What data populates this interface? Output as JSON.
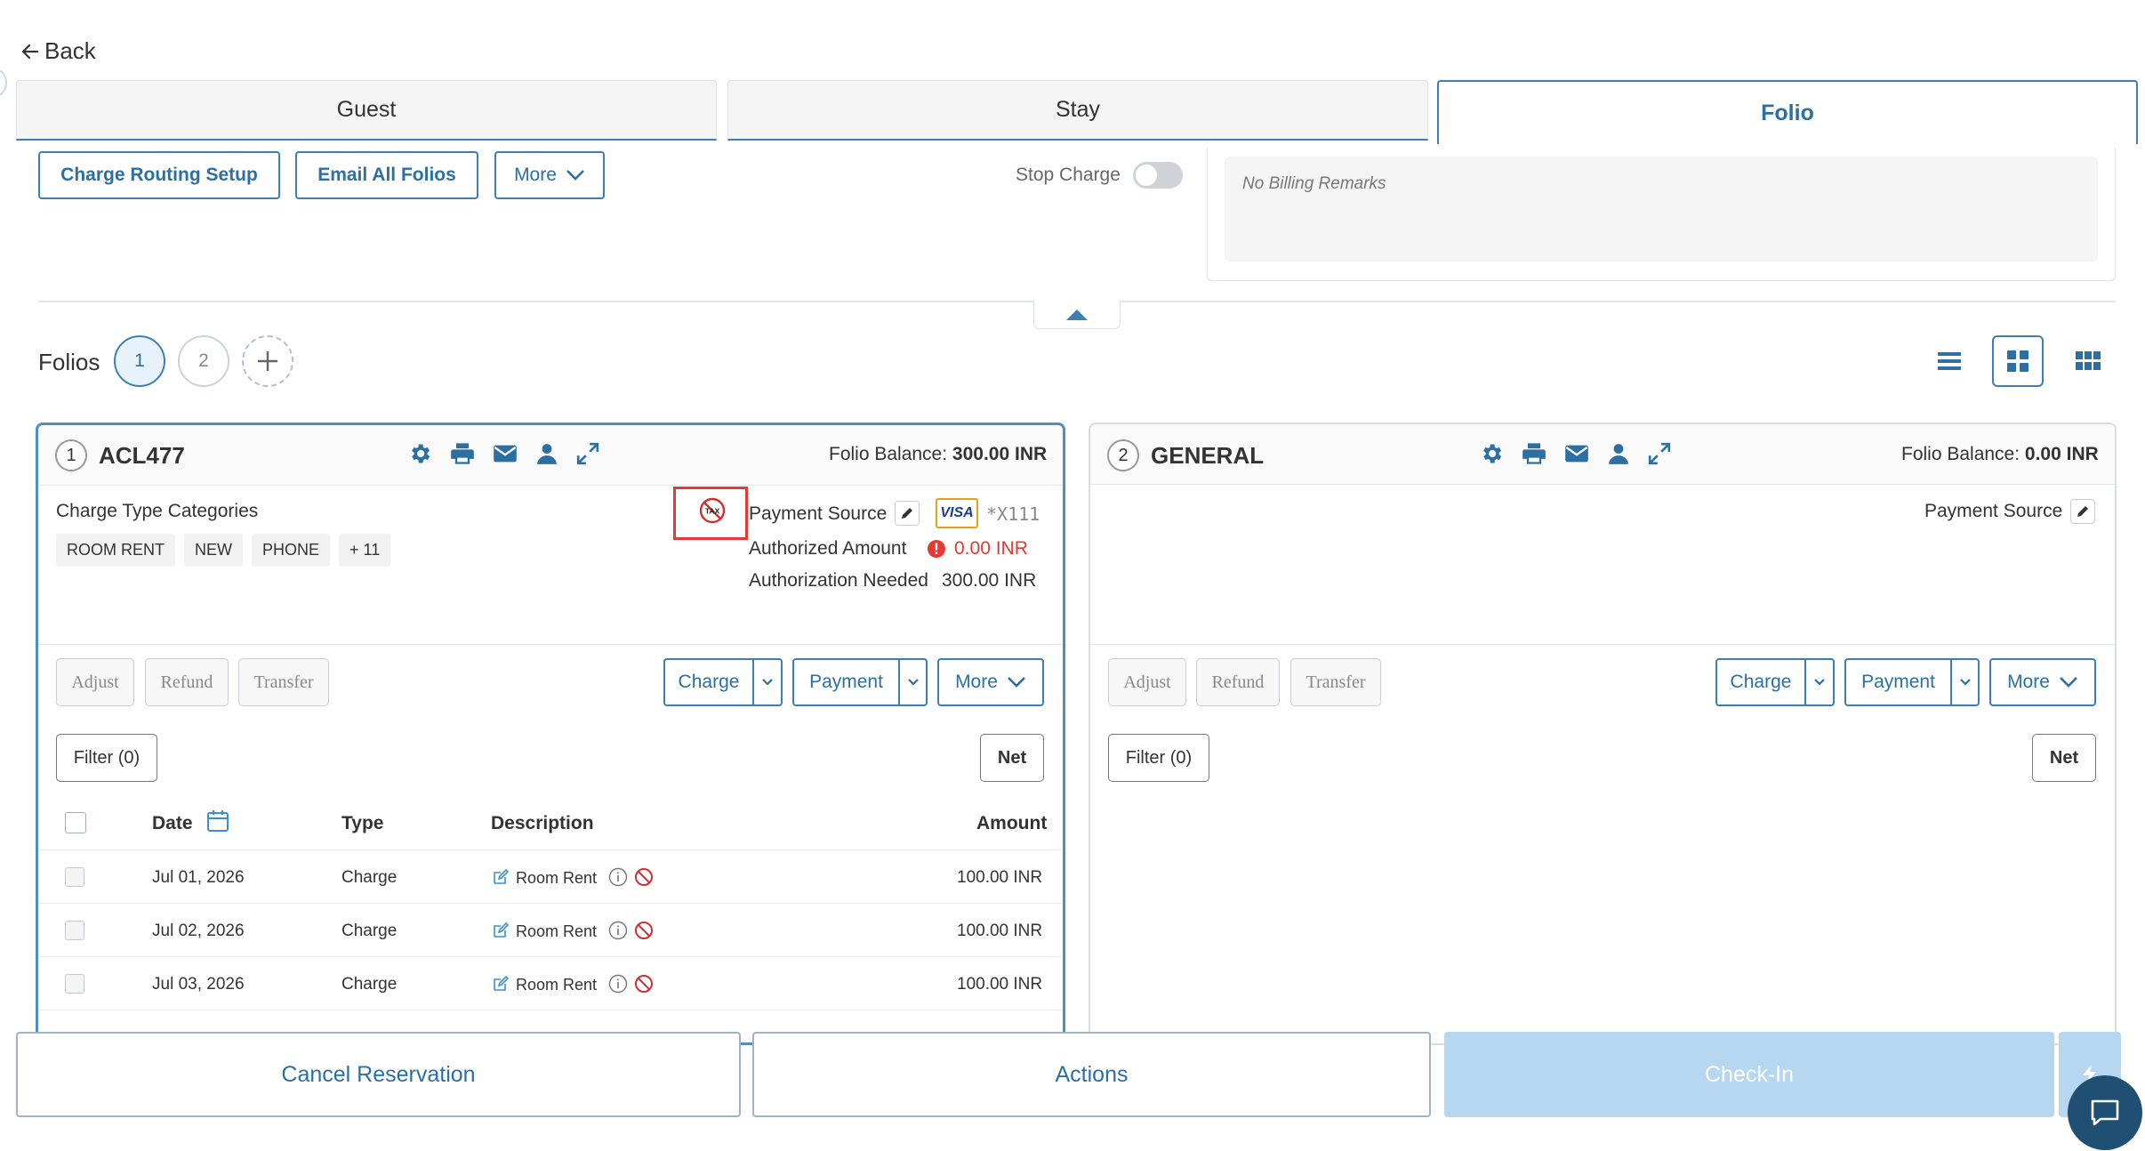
{
  "nav": {
    "back_label": "Back"
  },
  "tabs": [
    {
      "label": "Guest"
    },
    {
      "label": "Stay"
    },
    {
      "label": "Folio"
    }
  ],
  "toolbar": {
    "charge_routing_label": "Charge Routing Setup",
    "email_all_label": "Email All Folios",
    "more_label": "More",
    "stop_charge_label": "Stop Charge"
  },
  "billing_remarks": "No Billing Remarks",
  "folios": {
    "label": "Folios",
    "tabs": [
      "1",
      "2"
    ]
  },
  "folio1": {
    "number": "1",
    "name": "ACL477",
    "balance_label": "Folio Balance:",
    "balance_value": "300.00 INR",
    "charge_categories_label": "Charge Type Categories",
    "categories": [
      "ROOM RENT",
      "NEW",
      "PHONE",
      "+ 11"
    ],
    "tax_badge": "TAX",
    "payment_source_label": "Payment Source",
    "card_brand": "VISA",
    "card_masked": "*X111",
    "authorized_label": "Authorized Amount",
    "authorized_value": "0.00 INR",
    "auth_needed_label": "Authorization Needed",
    "auth_needed_value": "300.00 INR",
    "actions": {
      "adjust": "Adjust",
      "refund": "Refund",
      "transfer": "Transfer",
      "charge": "Charge",
      "payment": "Payment",
      "more": "More"
    },
    "filter_label": "Filter (0)",
    "net_label": "Net",
    "columns": {
      "date": "Date",
      "type": "Type",
      "description": "Description",
      "amount": "Amount"
    },
    "rows": [
      {
        "date": "Jul 01, 2026",
        "type": "Charge",
        "description": "Room Rent",
        "amount": "100.00 INR"
      },
      {
        "date": "Jul 02, 2026",
        "type": "Charge",
        "description": "Room Rent",
        "amount": "100.00 INR"
      },
      {
        "date": "Jul 03, 2026",
        "type": "Charge",
        "description": "Room Rent",
        "amount": "100.00 INR"
      }
    ]
  },
  "folio2": {
    "number": "2",
    "name": "GENERAL",
    "balance_label": "Folio Balance:",
    "balance_value": "0.00 INR",
    "payment_source_label": "Payment Source",
    "actions": {
      "adjust": "Adjust",
      "refund": "Refund",
      "transfer": "Transfer",
      "charge": "Charge",
      "payment": "Payment",
      "more": "More"
    },
    "filter_label": "Filter (0)",
    "net_label": "Net"
  },
  "bottom": {
    "cancel_label": "Cancel Reservation",
    "actions_label": "Actions",
    "checkin_label": "Check-In"
  },
  "colors": {
    "accent": "#3b7fb6",
    "danger": "#e53935",
    "checkin_disabled": "#b6d7ef",
    "chat": "#1f4f72"
  }
}
